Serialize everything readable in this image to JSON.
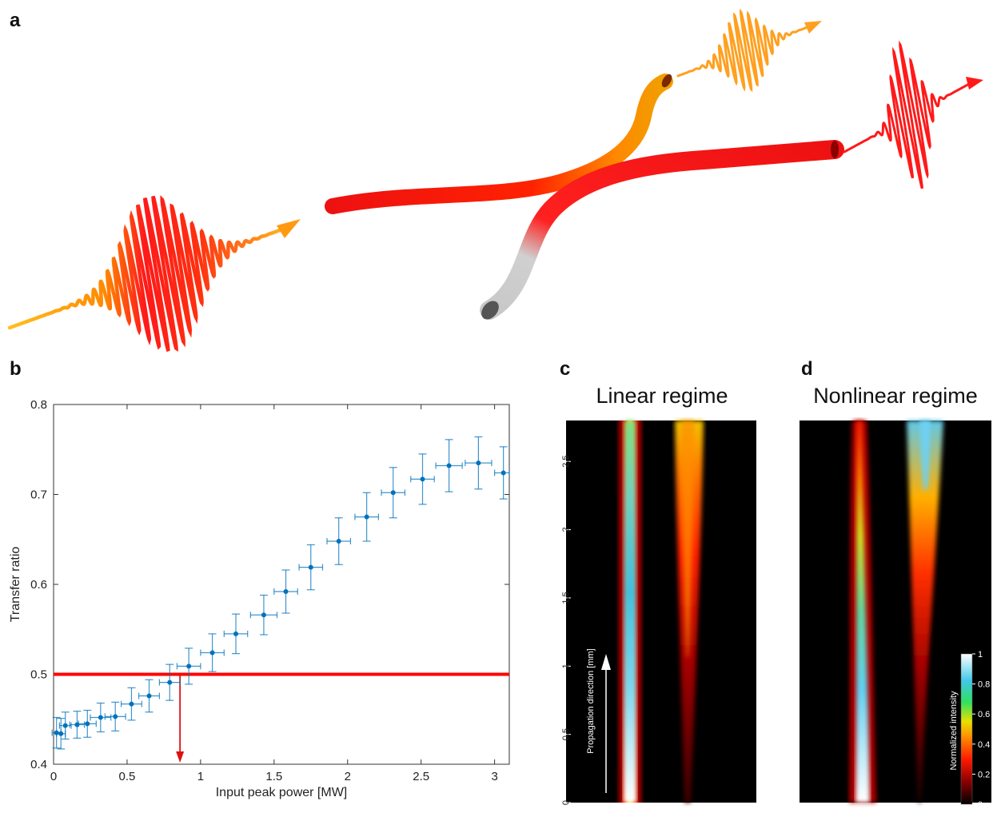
{
  "panels": {
    "a": "a",
    "b": "b",
    "c": "c",
    "d": "d"
  },
  "chart_data": [
    {
      "type": "scatter",
      "title": "",
      "xlabel": "Input peak power [MW]",
      "ylabel": "Transfer ratio",
      "xlim": [
        0,
        3.1
      ],
      "ylim": [
        0.4,
        0.8
      ],
      "xticks": [
        0,
        0.5,
        1,
        1.5,
        2,
        2.5,
        3
      ],
      "yticks": [
        0.4,
        0.5,
        0.6,
        0.7,
        0.8
      ],
      "xtick_labels": [
        "0",
        "0.5",
        "1",
        "1.5",
        "2",
        "2.5",
        "3"
      ],
      "ytick_labels": [
        "0.4",
        "0.5",
        "0.6",
        "0.7",
        "0.8"
      ],
      "threshold_line": {
        "y": 0.5,
        "color": "#ff0000"
      },
      "marker_arrow": {
        "x": 0.86,
        "from_y": 0.5,
        "to_y": 0.4,
        "color": "#e01010"
      },
      "series_color": "#0072bd",
      "points": [
        {
          "x": 0.02,
          "y": 0.435,
          "xerr": 0.03,
          "yerr": 0.017
        },
        {
          "x": 0.05,
          "y": 0.434,
          "xerr": 0.03,
          "yerr": 0.017
        },
        {
          "x": 0.08,
          "y": 0.443,
          "xerr": 0.04,
          "yerr": 0.015
        },
        {
          "x": 0.16,
          "y": 0.444,
          "xerr": 0.05,
          "yerr": 0.015
        },
        {
          "x": 0.23,
          "y": 0.445,
          "xerr": 0.06,
          "yerr": 0.015
        },
        {
          "x": 0.32,
          "y": 0.452,
          "xerr": 0.07,
          "yerr": 0.016
        },
        {
          "x": 0.42,
          "y": 0.453,
          "xerr": 0.07,
          "yerr": 0.016
        },
        {
          "x": 0.53,
          "y": 0.467,
          "xerr": 0.07,
          "yerr": 0.018
        },
        {
          "x": 0.65,
          "y": 0.476,
          "xerr": 0.07,
          "yerr": 0.018
        },
        {
          "x": 0.79,
          "y": 0.491,
          "xerr": 0.07,
          "yerr": 0.02
        },
        {
          "x": 0.92,
          "y": 0.509,
          "xerr": 0.08,
          "yerr": 0.02
        },
        {
          "x": 1.08,
          "y": 0.524,
          "xerr": 0.08,
          "yerr": 0.021
        },
        {
          "x": 1.24,
          "y": 0.545,
          "xerr": 0.08,
          "yerr": 0.022
        },
        {
          "x": 1.43,
          "y": 0.566,
          "xerr": 0.09,
          "yerr": 0.022
        },
        {
          "x": 1.58,
          "y": 0.592,
          "xerr": 0.08,
          "yerr": 0.024
        },
        {
          "x": 1.75,
          "y": 0.619,
          "xerr": 0.08,
          "yerr": 0.025
        },
        {
          "x": 1.94,
          "y": 0.648,
          "xerr": 0.08,
          "yerr": 0.026
        },
        {
          "x": 2.13,
          "y": 0.675,
          "xerr": 0.08,
          "yerr": 0.027
        },
        {
          "x": 2.31,
          "y": 0.702,
          "xerr": 0.08,
          "yerr": 0.028
        },
        {
          "x": 2.51,
          "y": 0.717,
          "xerr": 0.08,
          "yerr": 0.028
        },
        {
          "x": 2.69,
          "y": 0.732,
          "xerr": 0.09,
          "yerr": 0.029
        },
        {
          "x": 2.89,
          "y": 0.735,
          "xerr": 0.09,
          "yerr": 0.029
        },
        {
          "x": 3.06,
          "y": 0.724,
          "xerr": 0.06,
          "yerr": 0.029
        }
      ]
    },
    {
      "type": "heatmap",
      "title": "Linear regime",
      "ylabel": "Propagation direction [mm]",
      "ylim": [
        0,
        2.8
      ],
      "yticks": [
        0,
        0.5,
        1,
        1.5,
        2,
        2.5
      ],
      "ytick_labels": [
        "0",
        "0.5",
        "1",
        "1.5",
        "2",
        "2.5"
      ],
      "scale": "linear"
    },
    {
      "type": "heatmap",
      "title": "Nonlinear regime",
      "colorbar": {
        "label": "Normalized intensity",
        "ticks": [
          0,
          0.2,
          0.4,
          0.6,
          0.8,
          1
        ],
        "tick_labels": [
          "0",
          "0.2",
          "0.4",
          "0.6",
          "0.8",
          "1"
        ],
        "colors": [
          "#000000",
          "#8a0000",
          "#ff1a00",
          "#ff9000",
          "#e8e000",
          "#30e060",
          "#40c8e8",
          "#ffffff"
        ]
      }
    }
  ]
}
